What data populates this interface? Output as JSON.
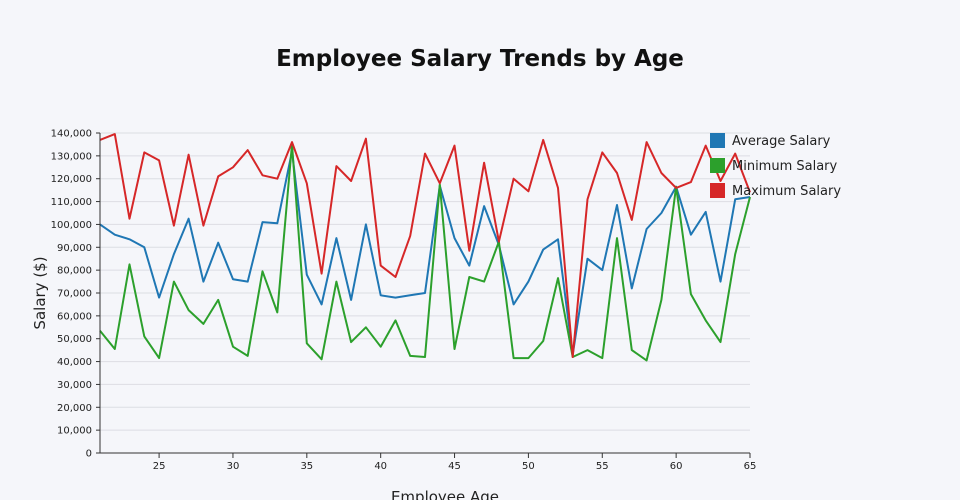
{
  "chart_data": {
    "type": "line",
    "title": "Employee Salary Trends by Age",
    "xlabel": "Employee Age",
    "ylabel": "Salary ($)",
    "xlim": [
      21,
      65
    ],
    "ylim": [
      0,
      140000
    ],
    "x_ticks": [
      25,
      30,
      35,
      40,
      45,
      50,
      55,
      60,
      65
    ],
    "y_ticks": [
      0,
      10000,
      20000,
      30000,
      40000,
      50000,
      60000,
      70000,
      80000,
      90000,
      100000,
      110000,
      120000,
      130000,
      140000
    ],
    "y_tick_labels": [
      "0",
      "10,000",
      "20,000",
      "30,000",
      "40,000",
      "50,000",
      "60,000",
      "70,000",
      "80,000",
      "90,000",
      "100,000",
      "110,000",
      "120,000",
      "130,000",
      "140,000"
    ],
    "grid": "horizontal",
    "legend_position": "top-right",
    "x": [
      21,
      22,
      23,
      24,
      25,
      26,
      27,
      28,
      29,
      30,
      31,
      32,
      33,
      34,
      35,
      36,
      37,
      38,
      39,
      40,
      41,
      42,
      43,
      44,
      45,
      46,
      47,
      48,
      49,
      50,
      51,
      52,
      53,
      54,
      55,
      56,
      57,
      58,
      59,
      60,
      61,
      62,
      63,
      64,
      65
    ],
    "series": [
      {
        "name": "Average Salary",
        "color": "#1f77b4",
        "values": [
          100000,
          95500,
          93500,
          90000,
          68000,
          87000,
          102500,
          75000,
          92000,
          76000,
          75000,
          101000,
          100500,
          132000,
          78000,
          65000,
          94000,
          67000,
          100000,
          69000,
          68000,
          69000,
          70000,
          117000,
          94000,
          82000,
          108000,
          91000,
          65000,
          75000,
          89000,
          93500,
          43000,
          85000,
          80000,
          108500,
          72000,
          98000,
          105000,
          116500,
          95500,
          105500,
          75000,
          111000,
          112000
        ]
      },
      {
        "name": "Minimum Salary",
        "color": "#2ca02c",
        "values": [
          53500,
          45500,
          82500,
          51000,
          41500,
          75000,
          62500,
          56500,
          67000,
          46500,
          42500,
          79500,
          61500,
          135000,
          48000,
          41000,
          75000,
          48500,
          55000,
          46500,
          58000,
          42500,
          42000,
          117500,
          45500,
          77000,
          75000,
          92500,
          41500,
          41500,
          49000,
          76500,
          42000,
          45000,
          41500,
          94000,
          45000,
          40500,
          67000,
          116500,
          69500,
          58000,
          48500,
          87000,
          112000
        ]
      },
      {
        "name": "Maximum Salary",
        "color": "#d62728",
        "values": [
          137000,
          139500,
          102500,
          131500,
          128000,
          99500,
          130500,
          99500,
          121000,
          125000,
          132500,
          121500,
          120000,
          136000,
          118000,
          78500,
          125500,
          119000,
          137500,
          82000,
          77000,
          95000,
          131000,
          118000,
          134500,
          88500,
          127000,
          92500,
          120000,
          114500,
          137000,
          116000,
          42000,
          111000,
          131500,
          122500,
          102000,
          136000,
          122500,
          116000,
          118500,
          134500,
          119000,
          131000,
          114000
        ]
      }
    ]
  }
}
